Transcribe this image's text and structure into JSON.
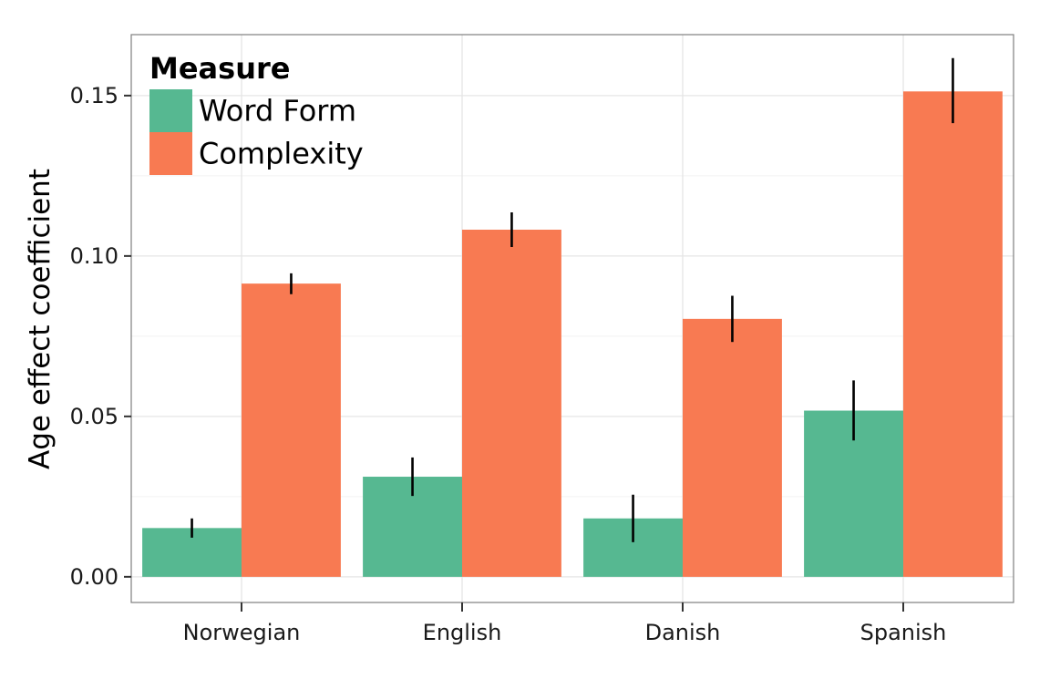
{
  "chart_data": {
    "type": "bar",
    "categories": [
      "Norwegian",
      "English",
      "Danish",
      "Spanish"
    ],
    "series": [
      {
        "name": "Word Form",
        "color": "#56b891",
        "values": [
          0.0152,
          0.0312,
          0.0182,
          0.0518
        ],
        "error_low": [
          0.0122,
          0.0252,
          0.0108,
          0.0425
        ],
        "error_high": [
          0.0182,
          0.0372,
          0.0256,
          0.0612
        ]
      },
      {
        "name": "Complexity",
        "color": "#f87a52",
        "values": [
          0.0914,
          0.1082,
          0.0804,
          0.1513
        ],
        "error_low": [
          0.0881,
          0.1028,
          0.0732,
          0.1414
        ],
        "error_high": [
          0.0946,
          0.1136,
          0.0876,
          0.1617
        ]
      }
    ],
    "title": "",
    "xlabel": "",
    "ylabel": "Age effect coefficient",
    "ylim": [
      -0.008,
      0.169
    ],
    "yticks": [
      0.0,
      0.05,
      0.1,
      0.15
    ],
    "ytick_labels": [
      "0.00",
      "0.05",
      "0.10",
      "0.15"
    ],
    "grid": true,
    "legend": {
      "title": "Measure",
      "placement": "top-left"
    }
  }
}
